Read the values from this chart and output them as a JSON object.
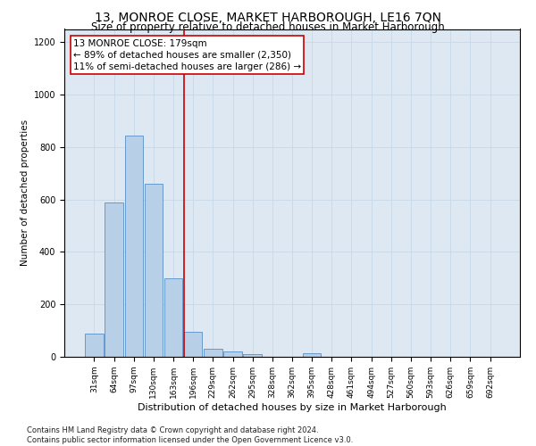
{
  "title": "13, MONROE CLOSE, MARKET HARBOROUGH, LE16 7QN",
  "subtitle": "Size of property relative to detached houses in Market Harborough",
  "xlabel": "Distribution of detached houses by size in Market Harborough",
  "ylabel": "Number of detached properties",
  "bar_values": [
    90,
    590,
    845,
    660,
    300,
    95,
    30,
    20,
    10,
    0,
    0,
    15,
    0,
    0,
    0,
    0,
    0,
    0,
    0,
    0,
    0
  ],
  "bar_labels": [
    "31sqm",
    "64sqm",
    "97sqm",
    "130sqm",
    "163sqm",
    "196sqm",
    "229sqm",
    "262sqm",
    "295sqm",
    "328sqm",
    "362sqm",
    "395sqm",
    "428sqm",
    "461sqm",
    "494sqm",
    "527sqm",
    "560sqm",
    "593sqm",
    "626sqm",
    "659sqm",
    "692sqm"
  ],
  "bar_color": "#b8cfe8",
  "bar_edge_color": "#6699cc",
  "vline_x": 4.55,
  "vline_color": "#cc0000",
  "annotation_text": "13 MONROE CLOSE: 179sqm\n← 89% of detached houses are smaller (2,350)\n11% of semi-detached houses are larger (286) →",
  "annotation_box_color": "#ffffff",
  "annotation_box_edge_color": "#cc0000",
  "ylim": [
    0,
    1250
  ],
  "yticks": [
    0,
    200,
    400,
    600,
    800,
    1000,
    1200
  ],
  "grid_color": "#c8d8e8",
  "bg_color": "#dde8f2",
  "footnote": "Contains HM Land Registry data © Crown copyright and database right 2024.\nContains public sector information licensed under the Open Government Licence v3.0.",
  "title_fontsize": 10,
  "subtitle_fontsize": 8.5,
  "annotation_fontsize": 7.5,
  "ylabel_fontsize": 7.5,
  "xlabel_fontsize": 8,
  "tick_fontsize": 6.5,
  "ytick_fontsize": 7,
  "footnote_fontsize": 6
}
